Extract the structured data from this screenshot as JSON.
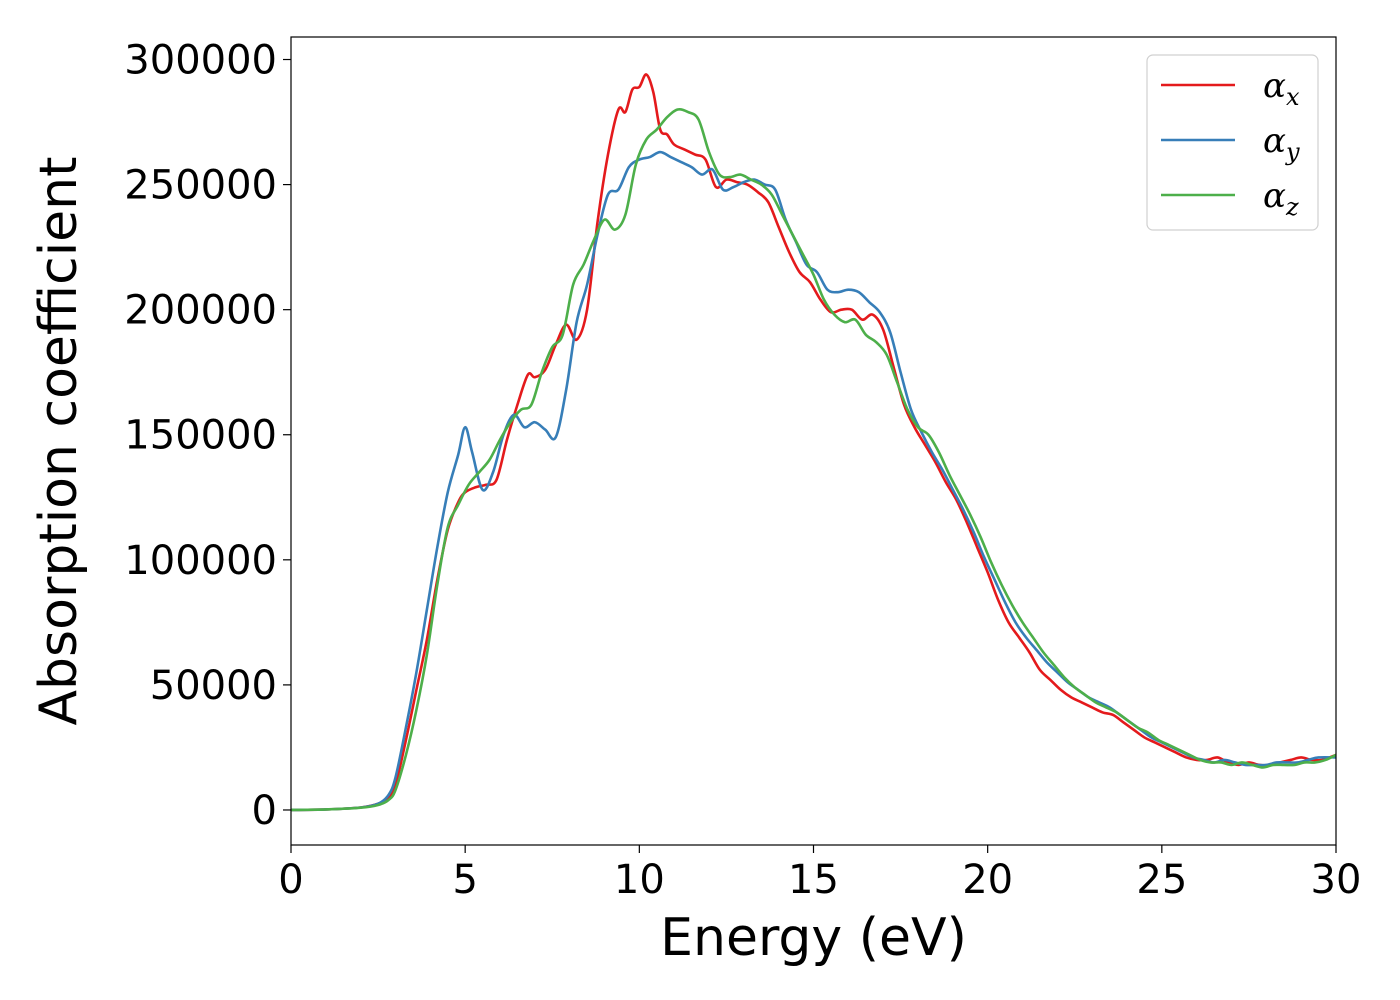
{
  "chart_data": {
    "type": "line",
    "title": "",
    "xlabel": "Energy (eV)",
    "ylabel": "Absorption coefficient",
    "xlim": [
      0,
      30
    ],
    "ylim": [
      -14000,
      309000
    ],
    "xticks": [
      0,
      5,
      10,
      15,
      20,
      25,
      30
    ],
    "yticks": [
      0,
      50000,
      100000,
      150000,
      200000,
      250000,
      300000
    ],
    "grid": false,
    "legend_position": "top-right",
    "series": [
      {
        "name": "α",
        "subscript": "x",
        "color": "#e41a1c",
        "x": [
          0,
          1,
          2,
          2.5,
          2.8,
          3.0,
          3.3,
          3.6,
          3.9,
          4.2,
          4.5,
          4.8,
          5.0,
          5.3,
          5.6,
          5.9,
          6.2,
          6.5,
          6.8,
          7.0,
          7.3,
          7.6,
          7.9,
          8.2,
          8.5,
          8.8,
          9.1,
          9.4,
          9.6,
          9.8,
          10.0,
          10.2,
          10.4,
          10.6,
          10.8,
          11.0,
          11.3,
          11.6,
          11.9,
          12.2,
          12.5,
          12.8,
          13.1,
          13.4,
          13.7,
          14.0,
          14.3,
          14.6,
          14.9,
          15.2,
          15.5,
          15.8,
          16.1,
          16.4,
          16.7,
          17.0,
          17.3,
          17.6,
          17.9,
          18.2,
          18.5,
          18.8,
          19.1,
          19.4,
          19.7,
          20.0,
          20.3,
          20.6,
          20.9,
          21.2,
          21.5,
          21.8,
          22.1,
          22.4,
          22.7,
          23.0,
          23.3,
          23.6,
          23.9,
          24.2,
          24.5,
          24.8,
          25.1,
          25.4,
          25.7,
          26.0,
          26.3,
          26.6,
          26.9,
          27.2,
          27.5,
          27.8,
          28.1,
          28.4,
          28.7,
          29.0,
          29.3,
          29.6,
          30.0
        ],
        "y": [
          0,
          200,
          1000,
          2500,
          5000,
          10000,
          28000,
          48000,
          68000,
          92000,
          112000,
          123000,
          127000,
          129000,
          130000,
          132000,
          148000,
          162000,
          174000,
          173000,
          176000,
          186000,
          194000,
          188000,
          200000,
          235000,
          262000,
          280000,
          279000,
          288000,
          289000,
          294000,
          287000,
          272000,
          270000,
          266000,
          264000,
          262000,
          260000,
          249000,
          252000,
          251000,
          250000,
          247000,
          243000,
          233000,
          223000,
          215000,
          211000,
          204000,
          199000,
          200000,
          200000,
          196000,
          198000,
          192000,
          177000,
          162000,
          153000,
          146000,
          139000,
          131000,
          124000,
          115000,
          105000,
          95000,
          84000,
          75000,
          69000,
          63000,
          56000,
          52000,
          48000,
          45000,
          43000,
          41000,
          39000,
          38000,
          35000,
          32000,
          29000,
          27000,
          25000,
          23000,
          21000,
          20000,
          20000,
          21000,
          19000,
          18000,
          19000,
          18000,
          18000,
          19000,
          20000,
          21000,
          20000,
          20000,
          22000
        ]
      },
      {
        "name": "α",
        "subscript": "y",
        "color": "#377eb8",
        "x": [
          0,
          1,
          2,
          2.5,
          2.8,
          3.0,
          3.3,
          3.6,
          3.9,
          4.2,
          4.5,
          4.8,
          5.0,
          5.2,
          5.5,
          5.8,
          6.1,
          6.4,
          6.7,
          7.0,
          7.3,
          7.6,
          7.9,
          8.2,
          8.5,
          8.8,
          9.1,
          9.4,
          9.7,
          10.0,
          10.3,
          10.6,
          10.9,
          11.2,
          11.5,
          11.8,
          12.1,
          12.4,
          12.7,
          13.0,
          13.3,
          13.6,
          13.9,
          14.2,
          14.5,
          14.8,
          15.1,
          15.4,
          15.7,
          16.0,
          16.3,
          16.6,
          16.9,
          17.2,
          17.5,
          17.8,
          18.1,
          18.4,
          18.7,
          19.0,
          19.3,
          19.6,
          19.9,
          20.2,
          20.5,
          20.8,
          21.1,
          21.4,
          21.7,
          22.0,
          22.3,
          22.6,
          22.9,
          23.2,
          23.5,
          23.8,
          24.1,
          24.4,
          24.7,
          25.0,
          25.3,
          25.6,
          25.9,
          26.2,
          26.5,
          26.8,
          27.1,
          27.4,
          27.7,
          28.0,
          28.3,
          28.6,
          28.9,
          29.2,
          29.5,
          30.0
        ],
        "y": [
          0,
          200,
          1000,
          2500,
          6000,
          13000,
          33000,
          55000,
          80000,
          105000,
          127000,
          142000,
          153000,
          143000,
          128000,
          135000,
          150000,
          158000,
          153000,
          155000,
          152000,
          149000,
          168000,
          195000,
          210000,
          230000,
          246000,
          248000,
          257000,
          260000,
          261000,
          263000,
          261000,
          259000,
          257000,
          254000,
          256000,
          248000,
          249000,
          251000,
          252000,
          250000,
          248000,
          236000,
          227000,
          218000,
          215000,
          208000,
          207000,
          208000,
          207000,
          203000,
          199000,
          191000,
          175000,
          160000,
          151000,
          143000,
          136000,
          128000,
          120000,
          111000,
          101000,
          92000,
          83000,
          75000,
          69000,
          64000,
          59000,
          55000,
          51000,
          48000,
          45000,
          43000,
          41000,
          38000,
          35000,
          32000,
          29000,
          27000,
          25000,
          23000,
          21000,
          20000,
          19000,
          20000,
          19000,
          18000,
          18000,
          18000,
          19000,
          19000,
          19000,
          20000,
          21000,
          21000
        ]
      },
      {
        "name": "α",
        "subscript": "z",
        "color": "#4daf4a",
        "x": [
          0,
          1,
          2,
          2.5,
          2.8,
          3.0,
          3.3,
          3.6,
          3.9,
          4.2,
          4.5,
          4.8,
          5.1,
          5.4,
          5.7,
          6.0,
          6.3,
          6.6,
          6.9,
          7.2,
          7.5,
          7.8,
          8.1,
          8.4,
          8.7,
          9.0,
          9.3,
          9.6,
          9.9,
          10.2,
          10.5,
          10.8,
          11.1,
          11.4,
          11.7,
          12.0,
          12.3,
          12.6,
          12.9,
          13.2,
          13.5,
          13.8,
          14.1,
          14.4,
          14.7,
          15.0,
          15.3,
          15.6,
          15.9,
          16.2,
          16.5,
          16.8,
          17.1,
          17.4,
          17.7,
          18.0,
          18.3,
          18.6,
          18.9,
          19.2,
          19.5,
          19.8,
          20.1,
          20.4,
          20.7,
          21.0,
          21.3,
          21.6,
          21.9,
          22.2,
          22.5,
          22.8,
          23.1,
          23.4,
          23.7,
          24.0,
          24.3,
          24.6,
          24.9,
          25.2,
          25.5,
          25.8,
          26.1,
          26.4,
          26.7,
          27.0,
          27.3,
          27.6,
          27.9,
          28.2,
          28.5,
          28.8,
          29.1,
          29.4,
          29.7,
          30.0
        ],
        "y": [
          0,
          200,
          900,
          2000,
          4000,
          8000,
          22000,
          40000,
          62000,
          90000,
          113000,
          122000,
          130000,
          135000,
          140000,
          148000,
          155000,
          160000,
          162000,
          175000,
          185000,
          190000,
          210000,
          218000,
          228000,
          236000,
          232000,
          238000,
          258000,
          268000,
          272000,
          277000,
          280000,
          279000,
          276000,
          263000,
          254000,
          253000,
          254000,
          252000,
          250000,
          246000,
          238000,
          230000,
          222000,
          214000,
          204000,
          198000,
          195000,
          196000,
          190000,
          187000,
          182000,
          171000,
          160000,
          153000,
          150000,
          143000,
          134000,
          126000,
          118000,
          109000,
          99000,
          90000,
          82000,
          75000,
          69000,
          63000,
          58000,
          53000,
          49000,
          46000,
          43000,
          41000,
          39000,
          36000,
          33000,
          31000,
          28000,
          26000,
          24000,
          22000,
          20000,
          19000,
          19000,
          18000,
          19000,
          18000,
          17000,
          18000,
          18000,
          18000,
          19000,
          19000,
          20000,
          22000
        ]
      }
    ]
  }
}
